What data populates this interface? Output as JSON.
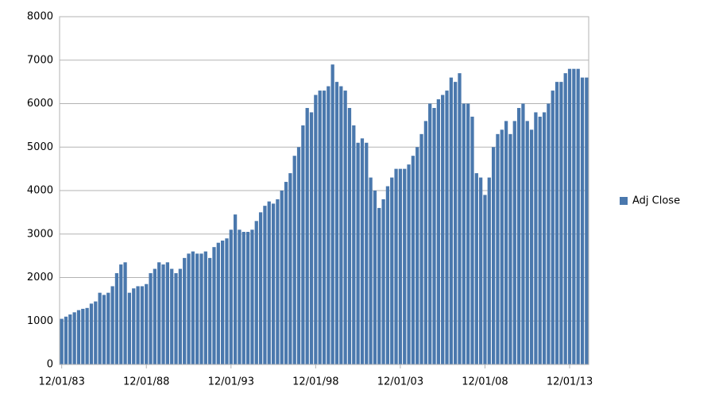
{
  "chart_data": {
    "type": "bar",
    "categories": [
      "12/01/83",
      null,
      null,
      null,
      null,
      null,
      null,
      null,
      null,
      null,
      null,
      null,
      null,
      null,
      null,
      null,
      null,
      null,
      null,
      null,
      "12/01/88",
      null,
      null,
      null,
      null,
      null,
      null,
      null,
      null,
      null,
      null,
      null,
      null,
      null,
      null,
      null,
      null,
      null,
      null,
      null,
      "12/01/93",
      null,
      null,
      null,
      null,
      null,
      null,
      null,
      null,
      null,
      null,
      null,
      null,
      null,
      null,
      null,
      null,
      null,
      null,
      null,
      "12/01/98",
      null,
      null,
      null,
      null,
      null,
      null,
      null,
      null,
      null,
      null,
      null,
      null,
      null,
      null,
      null,
      null,
      null,
      null,
      null,
      "12/01/03",
      null,
      null,
      null,
      null,
      null,
      null,
      null,
      null,
      null,
      null,
      null,
      null,
      null,
      null,
      null,
      null,
      null,
      null,
      null,
      "12/01/08",
      null,
      null,
      null,
      null,
      null,
      null,
      null,
      null,
      null,
      null,
      null,
      null,
      null,
      null,
      null,
      null,
      null,
      null,
      null,
      "12/01/13",
      null,
      null,
      null,
      null
    ],
    "series": [
      {
        "name": "Adj Close",
        "color": "#4a78ad",
        "values": [
          1050,
          1100,
          1150,
          1200,
          1250,
          1280,
          1300,
          1400,
          1450,
          1650,
          1600,
          1650,
          1800,
          2100,
          2300,
          2350,
          1650,
          1750,
          1800,
          1800,
          1850,
          2100,
          2200,
          2350,
          2300,
          2350,
          2200,
          2100,
          2200,
          2450,
          2550,
          2600,
          2550,
          2550,
          2600,
          2450,
          2700,
          2800,
          2850,
          2900,
          3100,
          3450,
          3100,
          3050,
          3050,
          3100,
          3300,
          3500,
          3650,
          3750,
          3700,
          3800,
          4000,
          4200,
          4400,
          4800,
          5000,
          5500,
          5900,
          5800,
          6200,
          6300,
          6300,
          6400,
          6900,
          6500,
          6400,
          6300,
          5900,
          5500,
          5100,
          5200,
          5100,
          4300,
          4000,
          3600,
          3800,
          4100,
          4300,
          4500,
          4500,
          4500,
          4600,
          4800,
          5000,
          5300,
          5600,
          6000,
          5900,
          6100,
          6200,
          6300,
          6600,
          6500,
          6700,
          6000,
          6000,
          5700,
          4400,
          4300,
          3900,
          4300,
          5000,
          5300,
          5400,
          5600,
          5300,
          5600,
          5900,
          6000,
          5600,
          5400,
          5800,
          5700,
          5800,
          6000,
          6300,
          6500,
          6500,
          6700,
          6800,
          6800,
          6800,
          6600,
          6600
        ]
      }
    ],
    "ylim": [
      0,
      8000
    ],
    "yticks": [
      0,
      1000,
      2000,
      3000,
      4000,
      5000,
      6000,
      7000,
      8000
    ],
    "grid": true,
    "legend": "right"
  }
}
